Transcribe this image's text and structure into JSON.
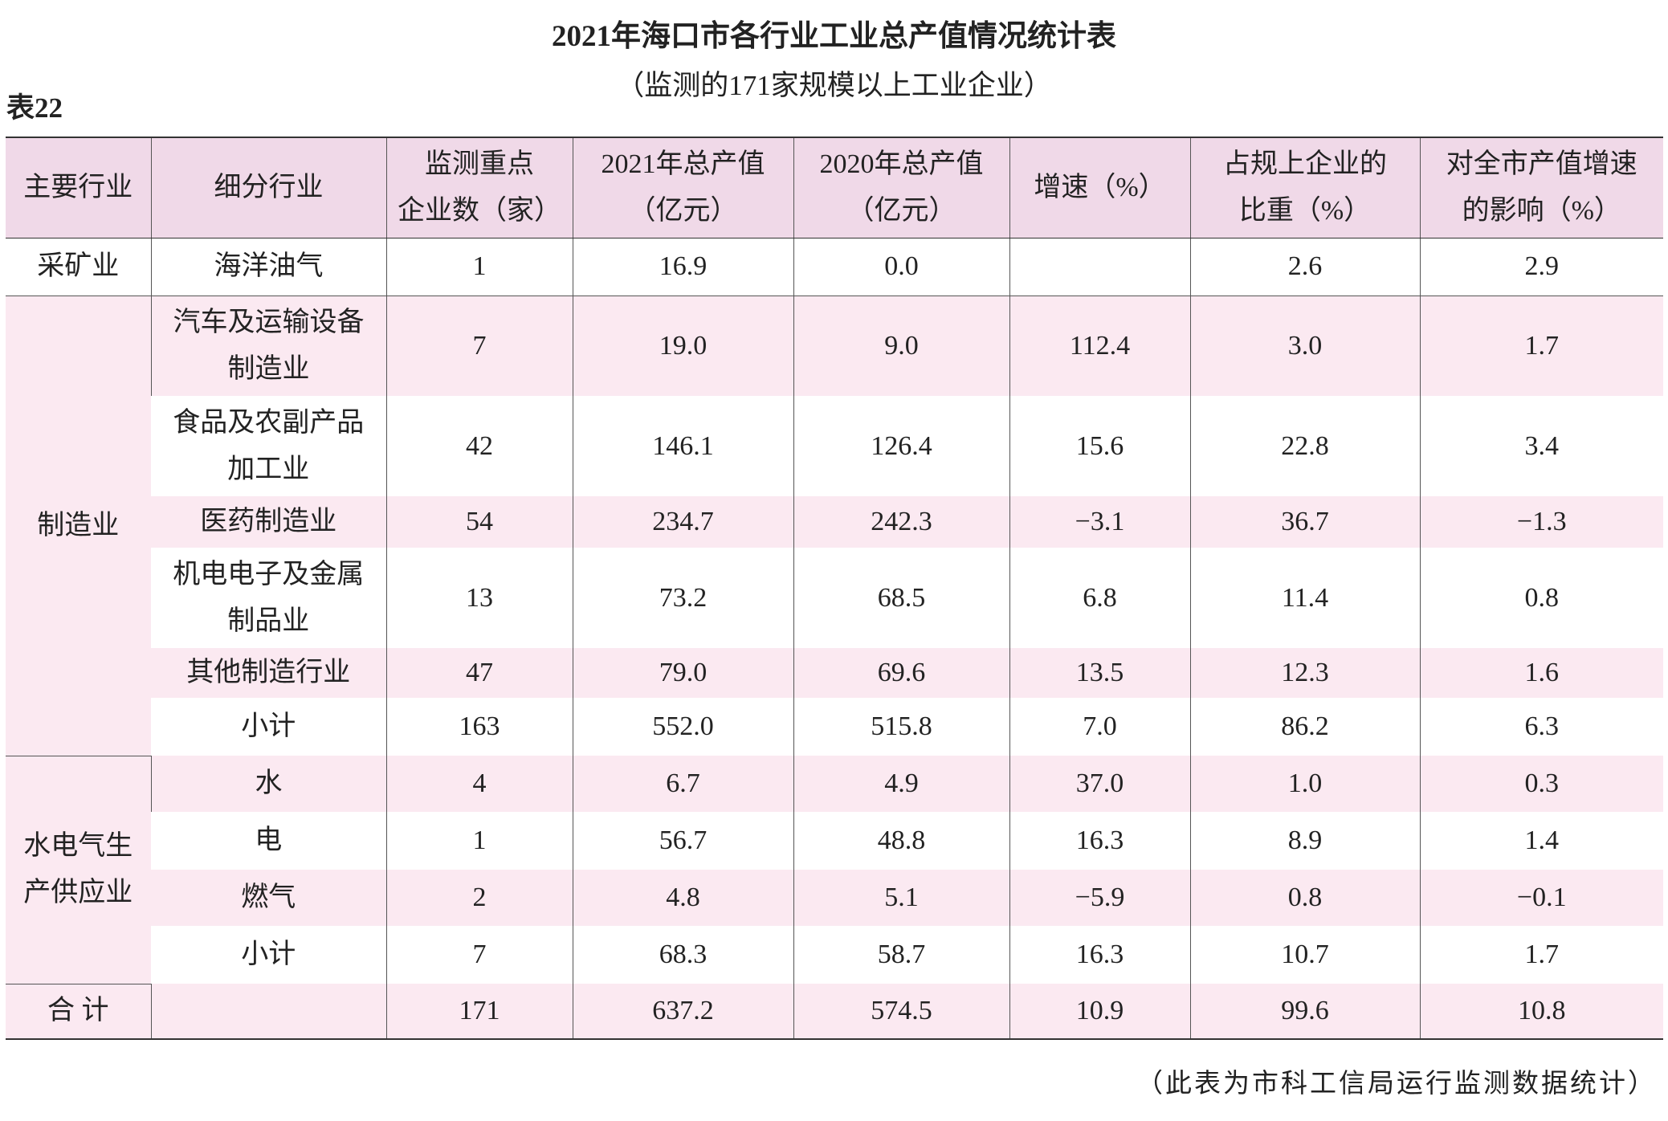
{
  "title": "2021年海口市各行业工业总产值情况统计表",
  "subtitle": "（监测的171家规模以上工业企业）",
  "table_label": "表22",
  "header": [
    [
      "主要行业"
    ],
    [
      "细分行业"
    ],
    [
      "监测重点",
      "企业数（家）"
    ],
    [
      "2021年总产值",
      "（亿元）"
    ],
    [
      "2020年总产值",
      "（亿元）"
    ],
    [
      "增速（%）"
    ],
    [
      "占规上企业的",
      "比重（%）"
    ],
    [
      "对全市产值增速",
      "的影响（%）"
    ]
  ],
  "groups": [
    {
      "name": [
        "采矿业"
      ],
      "rows": [
        [
          [
            "海洋油气"
          ],
          "1",
          "16.9",
          "0.0",
          null,
          "2.6",
          "2.9"
        ]
      ]
    },
    {
      "name": [
        "制造业"
      ],
      "rows": [
        [
          [
            "汽车及运输设备",
            "制造业"
          ],
          "7",
          "19.0",
          "9.0",
          "112.4",
          "3.0",
          "1.7"
        ],
        [
          [
            "食品及农副产品",
            "加工业"
          ],
          "42",
          "146.1",
          "126.4",
          "15.6",
          "22.8",
          "3.4"
        ],
        [
          [
            "医药制造业"
          ],
          "54",
          "234.7",
          "242.3",
          "−3.1",
          "36.7",
          "−1.3"
        ],
        [
          [
            "机电电子及金属",
            "制品业"
          ],
          "13",
          "73.2",
          "68.5",
          "6.8",
          "11.4",
          "0.8"
        ],
        [
          [
            "其他制造行业"
          ],
          "47",
          "79.0",
          "69.6",
          "13.5",
          "12.3",
          "1.6"
        ],
        [
          [
            "小计"
          ],
          "163",
          "552.0",
          "515.8",
          "7.0",
          "86.2",
          "6.3"
        ]
      ]
    },
    {
      "name": [
        "水电气生",
        "产供应业"
      ],
      "rows": [
        [
          [
            "水"
          ],
          "4",
          "6.7",
          "4.9",
          "37.0",
          "1.0",
          "0.3"
        ],
        [
          [
            "电"
          ],
          "1",
          "56.7",
          "48.8",
          "16.3",
          "8.9",
          "1.4"
        ],
        [
          [
            "燃气"
          ],
          "2",
          "4.8",
          "5.1",
          "−5.9",
          "0.8",
          "−0.1"
        ],
        [
          [
            "小计"
          ],
          "7",
          "68.3",
          "58.7",
          "16.3",
          "10.7",
          "1.7"
        ]
      ]
    },
    {
      "name": [
        "合  计"
      ],
      "rows": [
        [
          null,
          "171",
          "637.2",
          "574.5",
          "10.9",
          "99.6",
          "10.8"
        ]
      ]
    }
  ],
  "footer": "（此表为市科工信局运行监测数据统计）"
}
